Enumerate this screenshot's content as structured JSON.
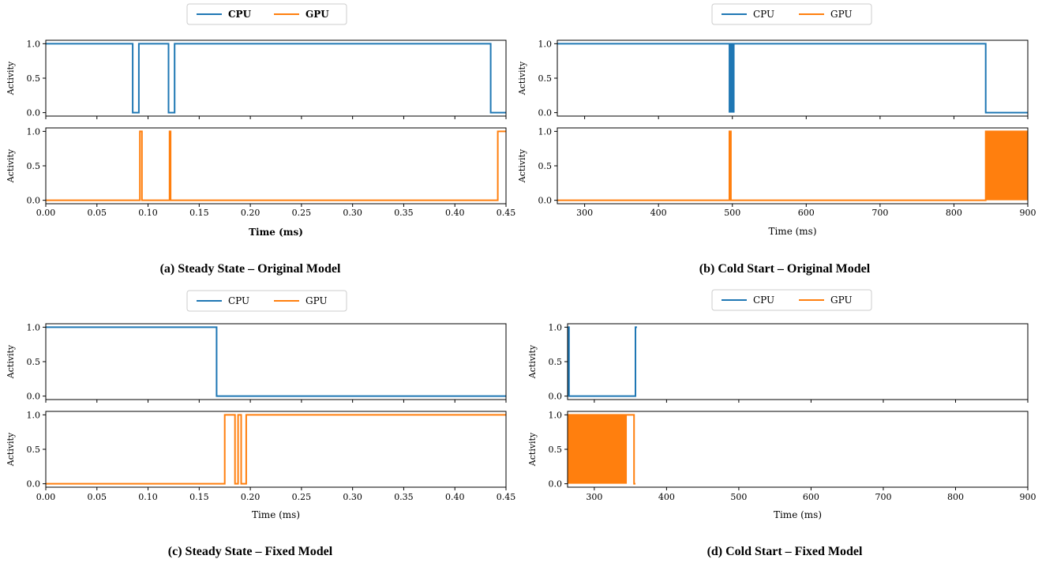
{
  "colors": {
    "cpu": "#1f77b4",
    "gpu": "#ff7f0e"
  },
  "chart_data": [
    {
      "id": "a",
      "caption": "(a) Steady State – Original Model",
      "type": "line",
      "step": true,
      "legend": [
        "CPU",
        "GPU"
      ],
      "legend_position": "top-center",
      "legend_bold": true,
      "xlabel": "Time (ms)",
      "xlabel_bold": true,
      "ylabel": "Activity",
      "xlim": [
        0.0,
        0.45
      ],
      "ylim": [
        -0.05,
        1.05
      ],
      "xticks": [
        "0.00",
        "0.05",
        "0.10",
        "0.15",
        "0.20",
        "0.25",
        "0.30",
        "0.35",
        "0.40",
        "0.45"
      ],
      "yticks": [
        "0.0",
        "0.5",
        "1.0"
      ],
      "series": [
        {
          "name": "CPU",
          "x": [
            0.0,
            0.085,
            0.085,
            0.091,
            0.091,
            0.12,
            0.12,
            0.126,
            0.126,
            0.435,
            0.435,
            0.45
          ],
          "y": [
            1,
            1,
            0,
            0,
            1,
            1,
            0,
            0,
            1,
            1,
            0,
            0
          ]
        },
        {
          "name": "GPU",
          "x": [
            0.0,
            0.092,
            0.092,
            0.094,
            0.094,
            0.121,
            0.121,
            0.122,
            0.122,
            0.442,
            0.442,
            0.45
          ],
          "y": [
            0,
            0,
            1,
            1,
            0,
            0,
            1,
            1,
            0,
            0,
            1,
            1
          ]
        }
      ]
    },
    {
      "id": "b",
      "caption": "(b) Cold Start – Original Model",
      "type": "line",
      "step": true,
      "legend": [
        "CPU",
        "GPU"
      ],
      "legend_position": "top-center",
      "legend_bold": false,
      "xlabel": "Time (ms)",
      "xlabel_bold": false,
      "ylabel": "Activity",
      "xlim": [
        263,
        900
      ],
      "ylim": [
        -0.05,
        1.05
      ],
      "xticks": [
        "300",
        "400",
        "500",
        "600",
        "700",
        "800",
        "900"
      ],
      "yticks": [
        "0.0",
        "0.5",
        "1.0"
      ],
      "series": [
        {
          "name": "CPU",
          "x": [
            263,
            843,
            843,
            900
          ],
          "y": [
            1,
            1,
            0,
            0
          ],
          "dense_blocks": [
            [
              495,
              503
            ]
          ]
        },
        {
          "name": "GPU",
          "x": [
            263,
            496,
            496,
            498,
            498,
            843,
            843,
            900
          ],
          "y": [
            0,
            0,
            1,
            1,
            0,
            0,
            1,
            1
          ],
          "dense_blocks": [
            [
              843,
              900
            ]
          ]
        }
      ]
    },
    {
      "id": "c",
      "caption": "(c) Steady State – Fixed Model",
      "type": "line",
      "step": true,
      "legend": [
        "CPU",
        "GPU"
      ],
      "legend_position": "top-center",
      "legend_bold": false,
      "xlabel": "Time (ms)",
      "xlabel_bold": false,
      "ylabel": "Activity",
      "xlim": [
        0.0,
        0.45
      ],
      "ylim": [
        -0.05,
        1.05
      ],
      "xticks": [
        "0.00",
        "0.05",
        "0.10",
        "0.15",
        "0.20",
        "0.25",
        "0.30",
        "0.35",
        "0.40",
        "0.45"
      ],
      "yticks": [
        "0.0",
        "0.5",
        "1.0"
      ],
      "series": [
        {
          "name": "CPU",
          "x": [
            0.0,
            0.167,
            0.167,
            0.45
          ],
          "y": [
            1,
            1,
            0,
            0
          ]
        },
        {
          "name": "GPU",
          "x": [
            0.0,
            0.175,
            0.175,
            0.185,
            0.185,
            0.188,
            0.188,
            0.191,
            0.191,
            0.196,
            0.196,
            0.45
          ],
          "y": [
            0,
            0,
            1,
            1,
            0,
            0,
            1,
            1,
            0,
            0,
            1,
            1
          ]
        }
      ]
    },
    {
      "id": "d",
      "caption": "(d) Cold Start – Fixed Model",
      "type": "line",
      "step": true,
      "legend": [
        "CPU",
        "GPU"
      ],
      "legend_position": "top-center",
      "legend_bold": false,
      "xlabel": "Time (ms)",
      "xlabel_bold": false,
      "ylabel": "Activity",
      "xlim": [
        263,
        900
      ],
      "ylim": [
        -0.05,
        1.05
      ],
      "xticks": [
        "300",
        "400",
        "500",
        "600",
        "700",
        "800",
        "900"
      ],
      "yticks": [
        "0.0",
        "0.5",
        "1.0"
      ],
      "series": [
        {
          "name": "CPU",
          "x": [
            263,
            263,
            265,
            265,
            357,
            357,
            359
          ],
          "y": [
            0,
            1,
            1,
            0,
            0,
            1,
            1
          ]
        },
        {
          "name": "GPU",
          "x": [
            263,
            345,
            345,
            355,
            355,
            357,
            357
          ],
          "y": [
            1,
            1,
            1,
            1,
            0,
            0,
            0
          ],
          "dense_blocks": [
            [
              263,
              345
            ]
          ]
        }
      ]
    }
  ]
}
